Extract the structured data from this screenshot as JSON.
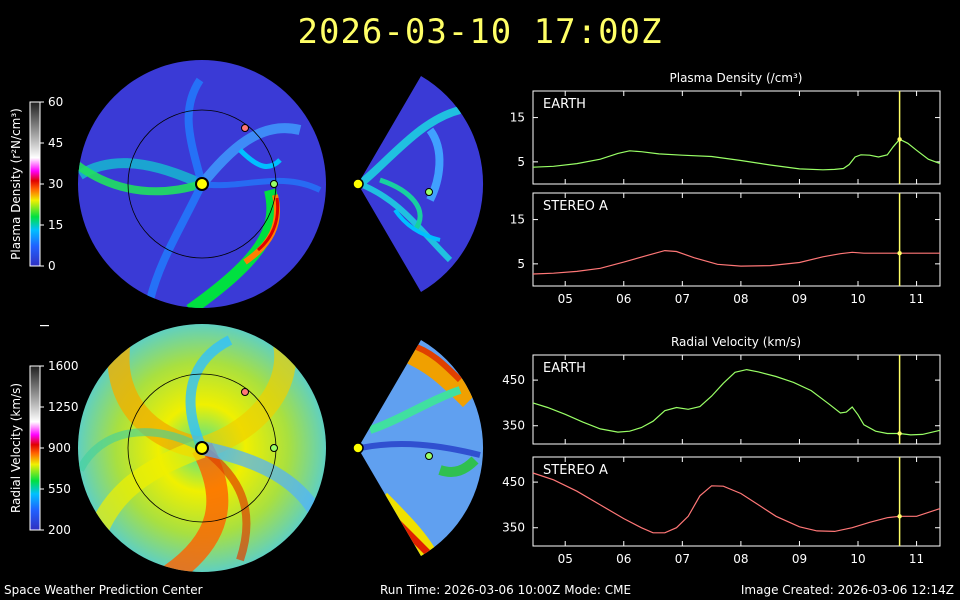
{
  "header": {
    "timestamp": "2026-03-10 17:00Z"
  },
  "footer": {
    "center": "Space Weather Prediction Center",
    "run_info": "Run Time: 2026-03-06 10:00Z  Mode: CME",
    "created": "Image Created: 2026-03-06 12:14Z"
  },
  "colors": {
    "background": "#000000",
    "earth_line": "#99ff66",
    "stereo_line": "#ff7777",
    "time_marker": "#ffff66",
    "sun": "#ffff00"
  },
  "colorbars": {
    "density": {
      "label": "Plasma Density (r²N/cm³)",
      "ticks": [
        "60",
        "45",
        "30",
        "15",
        "0"
      ]
    },
    "velocity": {
      "label": "Radial Velocity (km/s)",
      "ticks": [
        "1600",
        "1250",
        "900",
        "550",
        "200"
      ]
    }
  },
  "chart_data": [
    {
      "type": "line",
      "title": "Plasma Density (/cm³)",
      "xlabel": "",
      "ylabel": "",
      "x_ticks": [
        "05",
        "06",
        "07",
        "08",
        "09",
        "10",
        "11"
      ],
      "xlim": [
        4.45,
        11.4
      ],
      "current_time": 10.71,
      "panels": [
        {
          "name": "EARTH",
          "ylim": [
            0,
            21
          ],
          "y_ticks": [
            5,
            15
          ],
          "x": [
            4.45,
            4.8,
            5.2,
            5.6,
            5.9,
            6.1,
            6.3,
            6.6,
            7.0,
            7.5,
            8.0,
            8.5,
            9.0,
            9.4,
            9.6,
            9.75,
            9.85,
            9.95,
            10.05,
            10.2,
            10.35,
            10.5,
            10.6,
            10.71,
            10.85,
            11.0,
            11.2,
            11.4
          ],
          "values": [
            3.8,
            4.0,
            4.6,
            5.6,
            6.9,
            7.5,
            7.3,
            6.8,
            6.5,
            6.2,
            5.3,
            4.3,
            3.4,
            3.2,
            3.3,
            3.5,
            4.4,
            6.1,
            6.6,
            6.5,
            6.1,
            6.6,
            8.4,
            10.1,
            9.2,
            7.6,
            5.6,
            4.6
          ]
        },
        {
          "name": "STEREO A",
          "ylim": [
            0,
            21
          ],
          "y_ticks": [
            5,
            15
          ],
          "x": [
            4.45,
            4.8,
            5.2,
            5.6,
            6.0,
            6.4,
            6.7,
            6.9,
            7.2,
            7.6,
            8.0,
            8.5,
            9.0,
            9.4,
            9.7,
            9.9,
            10.1,
            10.3,
            10.5,
            10.71,
            11.0,
            11.4
          ],
          "values": [
            2.7,
            2.9,
            3.3,
            4.0,
            5.4,
            6.9,
            8.0,
            7.8,
            6.4,
            4.9,
            4.5,
            4.6,
            5.3,
            6.6,
            7.3,
            7.6,
            7.4,
            7.4,
            7.4,
            7.4,
            7.4,
            7.4
          ]
        }
      ]
    },
    {
      "type": "line",
      "title": "Radial Velocity (km/s)",
      "xlabel": "",
      "ylabel": "",
      "x_ticks": [
        "05",
        "06",
        "07",
        "08",
        "09",
        "10",
        "11"
      ],
      "xlim": [
        4.45,
        11.4
      ],
      "current_time": 10.71,
      "panels": [
        {
          "name": "EARTH",
          "ylim": [
            310,
            505
          ],
          "y_ticks": [
            350,
            450
          ],
          "x": [
            4.45,
            4.7,
            5.0,
            5.3,
            5.6,
            5.9,
            6.1,
            6.3,
            6.5,
            6.7,
            6.9,
            7.1,
            7.3,
            7.5,
            7.7,
            7.9,
            8.1,
            8.3,
            8.6,
            8.9,
            9.2,
            9.5,
            9.7,
            9.8,
            9.9,
            10.0,
            10.1,
            10.3,
            10.5,
            10.71,
            10.9,
            11.1,
            11.4
          ],
          "values": [
            400,
            390,
            375,
            358,
            343,
            336,
            338,
            346,
            360,
            383,
            390,
            386,
            392,
            415,
            443,
            467,
            473,
            468,
            458,
            445,
            427,
            398,
            378,
            380,
            391,
            374,
            352,
            338,
            333,
            333,
            330,
            331,
            340
          ]
        },
        {
          "name": "STEREO A",
          "ylim": [
            310,
            505
          ],
          "y_ticks": [
            350,
            450
          ],
          "x": [
            4.45,
            4.8,
            5.2,
            5.6,
            6.0,
            6.3,
            6.5,
            6.7,
            6.9,
            7.1,
            7.3,
            7.5,
            7.7,
            8.0,
            8.3,
            8.6,
            9.0,
            9.3,
            9.6,
            9.9,
            10.2,
            10.5,
            10.71,
            11.0,
            11.4
          ],
          "values": [
            470,
            455,
            430,
            400,
            370,
            350,
            339,
            339,
            350,
            375,
            420,
            442,
            441,
            425,
            400,
            375,
            352,
            343,
            342,
            350,
            362,
            372,
            375,
            375,
            392
          ]
        }
      ]
    }
  ]
}
